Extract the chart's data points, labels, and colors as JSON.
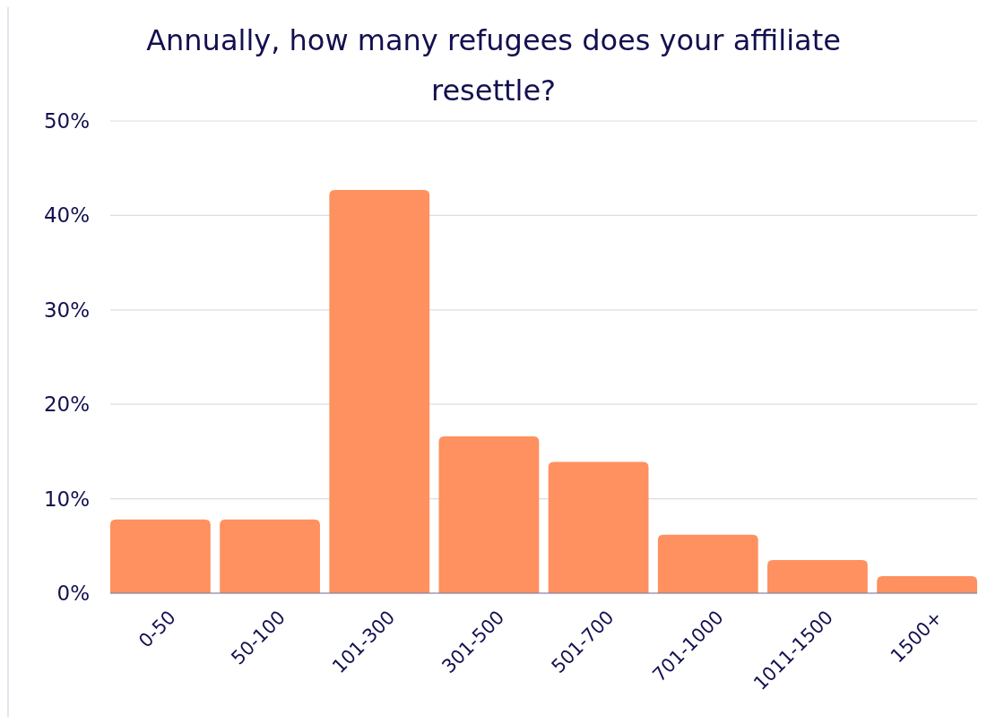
{
  "chart_data": {
    "type": "bar",
    "title": "Annually, how many refugees does your affiliate resettle?",
    "categories": [
      "0-50",
      "50-100",
      "101-300",
      "301-500",
      "501-700",
      "701-1000",
      "1011-1500",
      "1500+"
    ],
    "values": [
      7.8,
      7.8,
      42.7,
      16.6,
      13.9,
      6.2,
      3.5,
      1.8
    ],
    "color": "#fe915f",
    "ylim": [
      0,
      50
    ],
    "yticks": [
      {
        "value": 0,
        "label": "0%"
      },
      {
        "value": 10,
        "label": "10%"
      },
      {
        "value": 20,
        "label": "20%"
      },
      {
        "value": 30,
        "label": "30%"
      },
      {
        "value": 40,
        "label": "40%"
      },
      {
        "value": 50,
        "label": "50%"
      }
    ],
    "grid": "y"
  }
}
